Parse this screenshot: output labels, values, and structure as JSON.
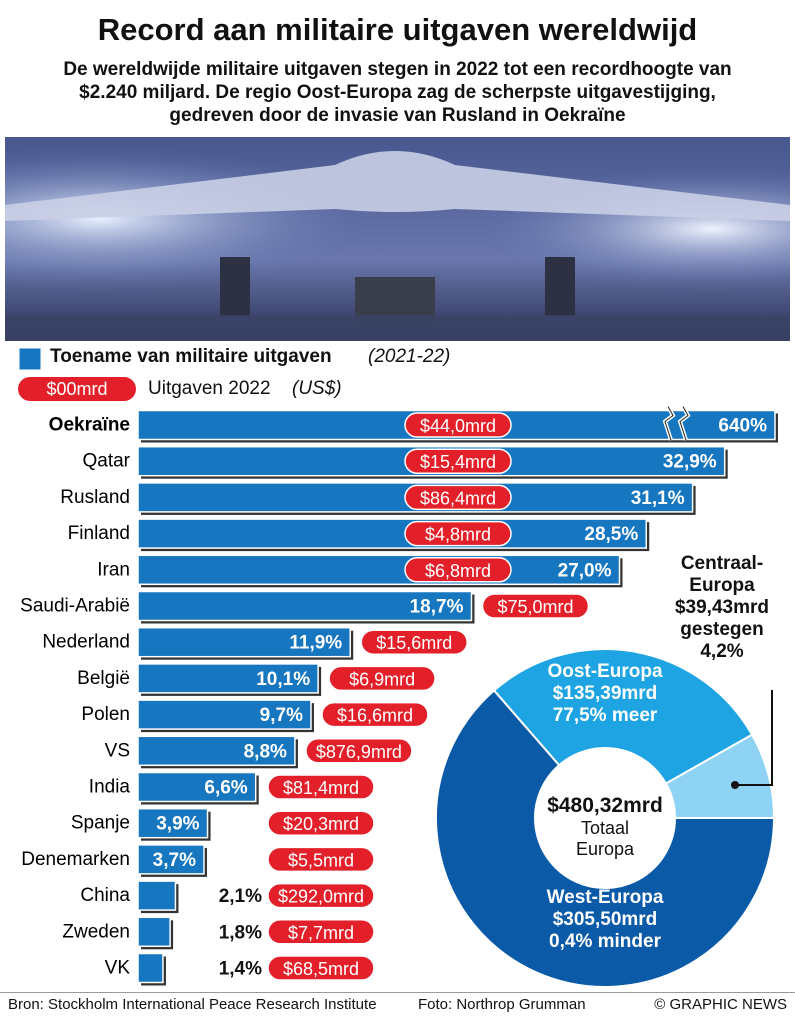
{
  "header": {
    "title": "Record aan militaire uitgaven wereldwijd",
    "subtitle": "De wereldwijde militaire uitgaven stegen in 2022 tot een recordhoogte van $2.240 miljard. De regio Oost-Europa zag de scherpste uitgavestijging, gedreven door de invasie van Rusland in Oekraïne"
  },
  "chart_data": [
    {
      "type": "bar",
      "legend": {
        "growth": "Toename van militaire uitgaven",
        "growth_period": "(2021-22)",
        "spending_sample": "$00mrd",
        "spending": "Uitgaven 2022",
        "spending_unit": "(US$)"
      },
      "categories": [
        "Oekraïne",
        "Qatar",
        "Rusland",
        "Finland",
        "Iran",
        "Saudi-Arabië",
        "Nederland",
        "België",
        "Polen",
        "VS",
        "India",
        "Spanje",
        "Denemarken",
        "China",
        "Zweden",
        "VK"
      ],
      "values": [
        640,
        32.9,
        31.1,
        28.5,
        27.0,
        18.7,
        11.9,
        10.1,
        9.7,
        8.8,
        6.6,
        3.9,
        3.7,
        2.1,
        1.8,
        1.4
      ],
      "value_labels": [
        "640%",
        "32,9%",
        "31,1%",
        "28,5%",
        "27,0%",
        "18,7%",
        "11,9%",
        "10,1%",
        "9,7%",
        "8,8%",
        "6,6%",
        "3,9%",
        "3,7%",
        "2,1%",
        "1,8%",
        "1,4%"
      ],
      "spending": [
        44.0,
        15.4,
        86.4,
        4.8,
        6.8,
        75.0,
        15.6,
        6.9,
        16.6,
        876.9,
        81.4,
        20.3,
        5.5,
        292.0,
        7.7,
        68.5
      ],
      "spending_labels": [
        "$44,0mrd",
        "$15,4mrd",
        "$86,4mrd",
        "$4,8mrd",
        "$6,8mrd",
        "$75,0mrd",
        "$15,6mrd",
        "$6,9mrd",
        "$16,6mrd",
        "$876,9mrd",
        "$81,4mrd",
        "$20,3mrd",
        "$5,5mrd",
        "$292,0mrd",
        "$7,7mrd",
        "$68,5mrd"
      ],
      "color": "#1776c0",
      "pill_color": "#e3202a",
      "xlim": [
        0,
        36
      ]
    },
    {
      "type": "pie",
      "categories": [
        "Centraal-Europa",
        "Oost-Europa",
        "West-Europa"
      ],
      "values": [
        39.43,
        135.39,
        305.5
      ],
      "value_labels": [
        "$39,43mrd",
        "$135,39mrd",
        "$305,50mrd"
      ],
      "change_labels": [
        "gestegen 4,2%",
        "77,5% meer",
        "0,4% minder"
      ],
      "colors": [
        "#8ed2f4",
        "#1ea4e2",
        "#0a5aa8"
      ],
      "total": 480.32,
      "total_label": "$480,32mrd",
      "total_caption": [
        "Totaal",
        "Europa"
      ]
    }
  ],
  "footer": {
    "source": "Bron: Stockholm International Peace Research Institute",
    "photo": "Foto: Northrop Grumman",
    "copyright": "© GRAPHIC NEWS"
  }
}
